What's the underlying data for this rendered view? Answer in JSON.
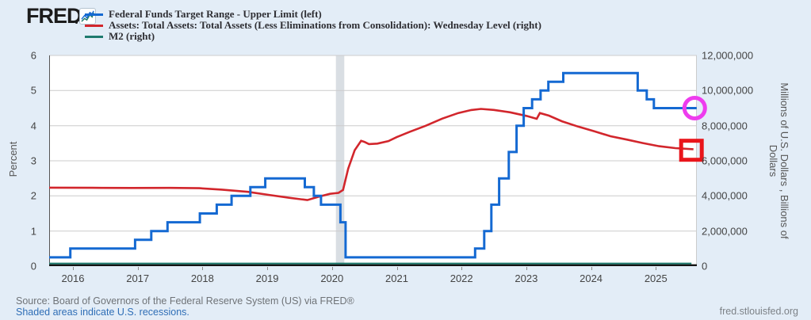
{
  "header": {
    "logo_text": "FRED",
    "legend": [
      {
        "id": "fed-funds",
        "label": "Federal Funds Target Range - Upper Limit (left)",
        "color": "#1469d2"
      },
      {
        "id": "total-assets",
        "label": "Assets: Total Assets: Total Assets (Less Eliminations from Consolidation): Wednesday Level (right)",
        "color": "#d2262c"
      },
      {
        "id": "m2",
        "label": "M2 (right)",
        "color": "#1e7b6e"
      }
    ]
  },
  "colors": {
    "page_bg": "#e3edf7",
    "plot_bg": "#ffffff",
    "grid": "#cccccc",
    "recession_band": "#d9dee3",
    "axis": "#141414",
    "left_spine": "#555555",
    "right_spine": "#cccccc",
    "blue_series": "#1469d2",
    "red_series": "#d2262c",
    "teal_series": "#1e7b6e",
    "annotation_circle": "#ee3cee",
    "annotation_square": "#e9151b"
  },
  "chart_data": {
    "type": "line",
    "x_axis": {
      "min": 2015.633,
      "max": 2025.633,
      "ticks": [
        {
          "label": "2016",
          "value": 2016
        },
        {
          "label": "2017",
          "value": 2017
        },
        {
          "label": "2018",
          "value": 2018
        },
        {
          "label": "2019",
          "value": 2019
        },
        {
          "label": "2020",
          "value": 2020
        },
        {
          "label": "2021",
          "value": 2021
        },
        {
          "label": "2022",
          "value": 2022
        },
        {
          "label": "2023",
          "value": 2023
        },
        {
          "label": "2024",
          "value": 2024
        },
        {
          "label": "2025",
          "value": 2025
        }
      ]
    },
    "left_axis": {
      "label": "Percent",
      "min": 0,
      "max": 6,
      "ticks": [
        {
          "label": "6",
          "value": 6
        },
        {
          "label": "5",
          "value": 5
        },
        {
          "label": "4",
          "value": 4
        },
        {
          "label": "3",
          "value": 3
        },
        {
          "label": "2",
          "value": 2
        },
        {
          "label": "1",
          "value": 1
        },
        {
          "label": "0",
          "value": 0
        }
      ]
    },
    "right_axis": {
      "label_line1": "Millions of U.S. Dollars , Billions of",
      "label_line2": "Dollars",
      "min": 0,
      "max": 12000000,
      "ticks": [
        {
          "label": "12,000,000",
          "value": 12000000
        },
        {
          "label": "10,000,000",
          "value": 10000000
        },
        {
          "label": "8,000,000",
          "value": 8000000
        },
        {
          "label": "6,000,000",
          "value": 6000000
        },
        {
          "label": "4,000,000",
          "value": 4000000
        },
        {
          "label": "2,000,000",
          "value": 2000000
        },
        {
          "label": "0",
          "value": 0
        }
      ]
    },
    "recession": {
      "start": 2020.06,
      "end": 2020.19
    },
    "series": [
      {
        "id": "fed-funds",
        "name": "Federal Funds Target Range - Upper Limit",
        "axis": "left",
        "color": "#1469d2",
        "step": true,
        "width": 3,
        "z": 2,
        "points": [
          [
            2015.633,
            0.25
          ],
          [
            2015.96,
            0.5
          ],
          [
            2016.96,
            0.75
          ],
          [
            2017.21,
            1.0
          ],
          [
            2017.46,
            1.25
          ],
          [
            2017.96,
            1.5
          ],
          [
            2018.22,
            1.75
          ],
          [
            2018.45,
            2.0
          ],
          [
            2018.74,
            2.25
          ],
          [
            2018.97,
            2.5
          ],
          [
            2019.58,
            2.25
          ],
          [
            2019.72,
            2.0
          ],
          [
            2019.83,
            1.75
          ],
          [
            2020.13,
            1.25
          ],
          [
            2020.21,
            0.25
          ],
          [
            2022.21,
            0.5
          ],
          [
            2022.35,
            1.0
          ],
          [
            2022.46,
            1.75
          ],
          [
            2022.58,
            2.5
          ],
          [
            2022.73,
            3.25
          ],
          [
            2022.85,
            4.0
          ],
          [
            2022.96,
            4.5
          ],
          [
            2023.09,
            4.75
          ],
          [
            2023.22,
            5.0
          ],
          [
            2023.34,
            5.25
          ],
          [
            2023.57,
            5.5
          ],
          [
            2024.72,
            5.0
          ],
          [
            2024.86,
            4.75
          ],
          [
            2024.97,
            4.5
          ],
          [
            2025.63,
            4.5
          ]
        ]
      },
      {
        "id": "total-assets",
        "name": "Assets: Total Assets (Less Eliminations from Consolidation): Wednesday Level",
        "axis": "right",
        "color": "#d2262c",
        "step": false,
        "width": 2.6,
        "z": 1,
        "points": [
          [
            2015.633,
            4470000
          ],
          [
            2016.3,
            4462000
          ],
          [
            2016.9,
            4452000
          ],
          [
            2017.5,
            4458000
          ],
          [
            2017.95,
            4440000
          ],
          [
            2018.3,
            4360000
          ],
          [
            2018.7,
            4230000
          ],
          [
            2019.05,
            4040000
          ],
          [
            2019.35,
            3890000
          ],
          [
            2019.62,
            3762000
          ],
          [
            2019.8,
            3960000
          ],
          [
            2019.97,
            4120000
          ],
          [
            2020.1,
            4175000
          ],
          [
            2020.17,
            4340000
          ],
          [
            2020.25,
            5550000
          ],
          [
            2020.35,
            6600000
          ],
          [
            2020.45,
            7135000
          ],
          [
            2020.5,
            7080000
          ],
          [
            2020.57,
            6950000
          ],
          [
            2020.7,
            6980000
          ],
          [
            2020.87,
            7120000
          ],
          [
            2021.0,
            7350000
          ],
          [
            2021.2,
            7650000
          ],
          [
            2021.45,
            8000000
          ],
          [
            2021.7,
            8400000
          ],
          [
            2021.95,
            8720000
          ],
          [
            2022.15,
            8890000
          ],
          [
            2022.3,
            8955000
          ],
          [
            2022.5,
            8895000
          ],
          [
            2022.75,
            8760000
          ],
          [
            2023.0,
            8560000
          ],
          [
            2023.16,
            8390000
          ],
          [
            2023.21,
            8720000
          ],
          [
            2023.35,
            8570000
          ],
          [
            2023.55,
            8250000
          ],
          [
            2023.8,
            7950000
          ],
          [
            2024.05,
            7680000
          ],
          [
            2024.3,
            7400000
          ],
          [
            2024.55,
            7210000
          ],
          [
            2024.8,
            7010000
          ],
          [
            2025.05,
            6830000
          ],
          [
            2025.3,
            6720000
          ],
          [
            2025.58,
            6660000
          ]
        ]
      },
      {
        "id": "m2",
        "name": "M2",
        "axis": "right",
        "color": "#1e7b6e",
        "step": false,
        "width": 2,
        "z": 3,
        "clamp_bottom": true,
        "points": [
          [
            2015.633,
            12050
          ],
          [
            2025.55,
            21940
          ]
        ]
      }
    ],
    "annotations": [
      {
        "shape": "circle",
        "name": "fed-funds-endpoint-highlight",
        "x": 2025.6,
        "value_left": 4.5,
        "r": 13,
        "stroke_width": 5,
        "color": "#ee3cee"
      },
      {
        "shape": "rect",
        "name": "total-assets-endpoint-highlight",
        "x": 2025.55,
        "value_right": 6600000,
        "w": 26,
        "h": 24,
        "stroke_width": 5,
        "color": "#e9151b"
      }
    ]
  },
  "footer": {
    "source": "Source: Board of Governors of the Federal Reserve System (US) via FRED®",
    "recession_note": "Shaded areas indicate U.S. recessions.",
    "site": "fred.stlouisfed.org"
  }
}
